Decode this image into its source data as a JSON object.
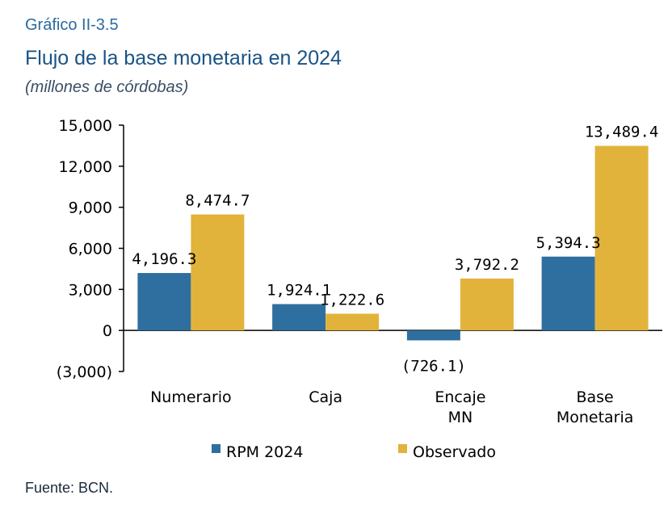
{
  "header": {
    "figure_number": "Gráfico II-3.5",
    "title": "Flujo de la base monetaria en 2024",
    "units": "(millones de córdobas)"
  },
  "footer": {
    "source": "Fuente: BCN."
  },
  "colors": {
    "rpm": "#2f6f9f",
    "observado": "#e2b33b",
    "axis": "#000000"
  },
  "chart_data": {
    "type": "bar",
    "title": "Flujo de la base monetaria en 2024",
    "subtitle": "(millones de córdobas)",
    "categories": [
      [
        "Numerario"
      ],
      [
        "Caja"
      ],
      [
        "Encaje",
        "MN"
      ],
      [
        "Base",
        "Monetaria"
      ]
    ],
    "series": [
      {
        "name": "RPM 2024",
        "values": [
          4196.3,
          1924.1,
          -726.1,
          5394.3
        ],
        "labels": [
          "4,196.3",
          "1,924.1",
          "(726.1)",
          "5,394.3"
        ]
      },
      {
        "name": "Observado",
        "values": [
          8474.7,
          1222.6,
          3792.2,
          13489.4
        ],
        "labels": [
          "8,474.7",
          "1,222.6",
          "3,792.2",
          "13,489.4"
        ]
      }
    ],
    "ylim": [
      -3000,
      15000
    ],
    "yticks": [
      15000,
      12000,
      9000,
      6000,
      3000,
      0,
      -3000
    ],
    "ytick_labels": [
      "15,000",
      "12,000",
      "9,000",
      "6,000",
      "3,000",
      "0",
      "(3,000)"
    ],
    "grid": false,
    "legend": "bottom"
  }
}
